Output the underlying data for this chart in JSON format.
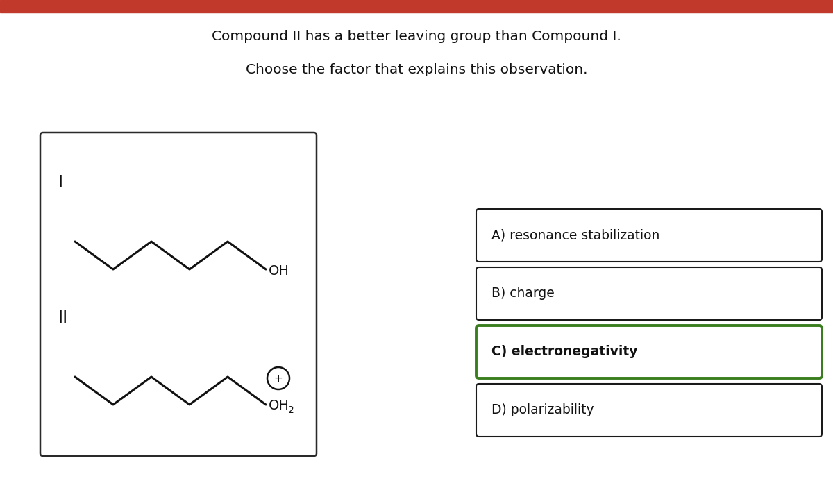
{
  "bg_color": "#ffffff",
  "red_bar_color": "#c0392b",
  "question_line1": "Compound II has a better leaving group than Compound I.",
  "question_line2": "Choose the factor that explains this observation.",
  "question_fontsize": 14.5,
  "compound_label_I": "I",
  "compound_label_II": "II",
  "compound_label_fontsize": 17,
  "options": [
    {
      "label": "A) resonance stabilization",
      "bold": false,
      "selected": false
    },
    {
      "label": "B) charge",
      "bold": false,
      "selected": false
    },
    {
      "label": "C) electronegativity",
      "bold": true,
      "selected": true
    },
    {
      "label": "D) polarizability",
      "bold": false,
      "selected": false
    }
  ],
  "option_fontsize": 13.5,
  "box_outline_color": "#1a1a1a",
  "selected_box_outline_color": "#3a7d1e",
  "oh_fontsize": 14,
  "oh2_fontsize": 14,
  "sub2_fontsize": 10,
  "plus_fontsize": 11,
  "chain_color": "#111111",
  "chain_linewidth": 2.2
}
